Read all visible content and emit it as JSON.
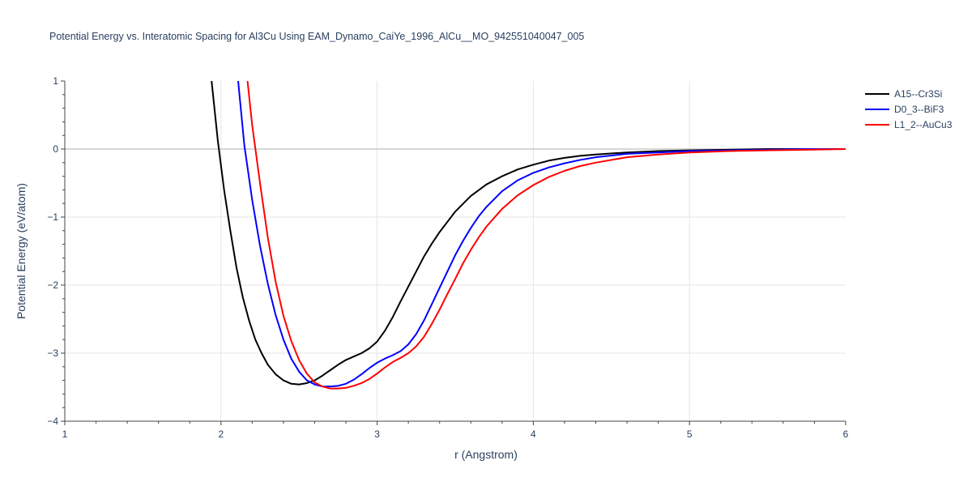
{
  "chart_data": {
    "type": "line",
    "title": "Potential Energy vs. Interatomic Spacing for Al3Cu Using EAM_Dynamo_CaiYe_1996_AlCu__MO_942551040047_005",
    "xlabel": "r (Angstrom)",
    "ylabel": "Potential Energy (eV/atom)",
    "xlim": [
      1,
      6
    ],
    "ylim": [
      -4,
      1
    ],
    "x_ticks": [
      "1",
      "2",
      "3",
      "4",
      "5",
      "6"
    ],
    "y_ticks": [
      "1",
      "0",
      "−1",
      "−2",
      "−3",
      "−4"
    ],
    "grid": true,
    "legend_position": "top-right",
    "series": [
      {
        "name": "A15--Cr3Si",
        "color": "#000000",
        "x": [
          1.94,
          1.98,
          2.02,
          2.06,
          2.1,
          2.14,
          2.18,
          2.22,
          2.26,
          2.3,
          2.35,
          2.4,
          2.45,
          2.5,
          2.55,
          2.6,
          2.65,
          2.7,
          2.75,
          2.8,
          2.85,
          2.9,
          2.95,
          3.0,
          3.05,
          3.1,
          3.15,
          3.2,
          3.25,
          3.3,
          3.35,
          3.4,
          3.5,
          3.6,
          3.7,
          3.8,
          3.9,
          4.0,
          4.1,
          4.2,
          4.3,
          4.4,
          4.6,
          4.8,
          5.0,
          5.25,
          5.5,
          5.75,
          6.0
        ],
        "y": [
          1.0,
          0.12,
          -0.6,
          -1.2,
          -1.75,
          -2.18,
          -2.52,
          -2.8,
          -3.0,
          -3.17,
          -3.31,
          -3.4,
          -3.45,
          -3.46,
          -3.44,
          -3.4,
          -3.33,
          -3.25,
          -3.17,
          -3.1,
          -3.05,
          -3.0,
          -2.93,
          -2.83,
          -2.67,
          -2.47,
          -2.24,
          -2.02,
          -1.8,
          -1.58,
          -1.39,
          -1.22,
          -0.92,
          -0.69,
          -0.52,
          -0.4,
          -0.3,
          -0.23,
          -0.17,
          -0.13,
          -0.1,
          -0.08,
          -0.05,
          -0.03,
          -0.02,
          -0.01,
          0.0,
          0.0,
          0.0
        ]
      },
      {
        "name": "D0_3--BiF3",
        "color": "#0000ff",
        "x": [
          2.11,
          2.15,
          2.2,
          2.25,
          2.3,
          2.35,
          2.4,
          2.45,
          2.5,
          2.55,
          2.6,
          2.65,
          2.7,
          2.75,
          2.8,
          2.85,
          2.9,
          2.95,
          3.0,
          3.05,
          3.1,
          3.15,
          3.2,
          3.25,
          3.3,
          3.35,
          3.4,
          3.45,
          3.5,
          3.55,
          3.6,
          3.65,
          3.7,
          3.8,
          3.9,
          4.0,
          4.1,
          4.2,
          4.3,
          4.4,
          4.6,
          4.8,
          5.0,
          5.25,
          5.5,
          5.75,
          6.0
        ],
        "y": [
          1.0,
          0.05,
          -0.75,
          -1.42,
          -1.98,
          -2.44,
          -2.8,
          -3.08,
          -3.27,
          -3.4,
          -3.46,
          -3.49,
          -3.49,
          -3.48,
          -3.45,
          -3.39,
          -3.31,
          -3.22,
          -3.14,
          -3.08,
          -3.03,
          -2.97,
          -2.87,
          -2.72,
          -2.52,
          -2.28,
          -2.04,
          -1.8,
          -1.56,
          -1.35,
          -1.16,
          -0.99,
          -0.85,
          -0.62,
          -0.46,
          -0.35,
          -0.27,
          -0.21,
          -0.16,
          -0.12,
          -0.07,
          -0.05,
          -0.03,
          -0.02,
          -0.01,
          0.0,
          0.0
        ]
      },
      {
        "name": "L1_2--AuCu3",
        "color": "#ff0000",
        "x": [
          2.17,
          2.2,
          2.25,
          2.3,
          2.35,
          2.4,
          2.45,
          2.5,
          2.55,
          2.6,
          2.65,
          2.7,
          2.75,
          2.8,
          2.85,
          2.9,
          2.95,
          3.0,
          3.05,
          3.1,
          3.15,
          3.2,
          3.25,
          3.3,
          3.35,
          3.4,
          3.45,
          3.5,
          3.55,
          3.6,
          3.65,
          3.7,
          3.8,
          3.9,
          4.0,
          4.1,
          4.2,
          4.3,
          4.4,
          4.6,
          4.8,
          5.0,
          5.25,
          5.5,
          5.75,
          6.0
        ],
        "y": [
          1.0,
          0.35,
          -0.5,
          -1.3,
          -1.95,
          -2.45,
          -2.82,
          -3.1,
          -3.3,
          -3.43,
          -3.49,
          -3.52,
          -3.52,
          -3.51,
          -3.48,
          -3.44,
          -3.38,
          -3.3,
          -3.21,
          -3.13,
          -3.07,
          -3.0,
          -2.9,
          -2.76,
          -2.57,
          -2.36,
          -2.13,
          -1.91,
          -1.68,
          -1.48,
          -1.3,
          -1.14,
          -0.88,
          -0.68,
          -0.53,
          -0.41,
          -0.32,
          -0.25,
          -0.2,
          -0.12,
          -0.08,
          -0.05,
          -0.03,
          -0.02,
          -0.01,
          0.0
        ]
      }
    ]
  }
}
